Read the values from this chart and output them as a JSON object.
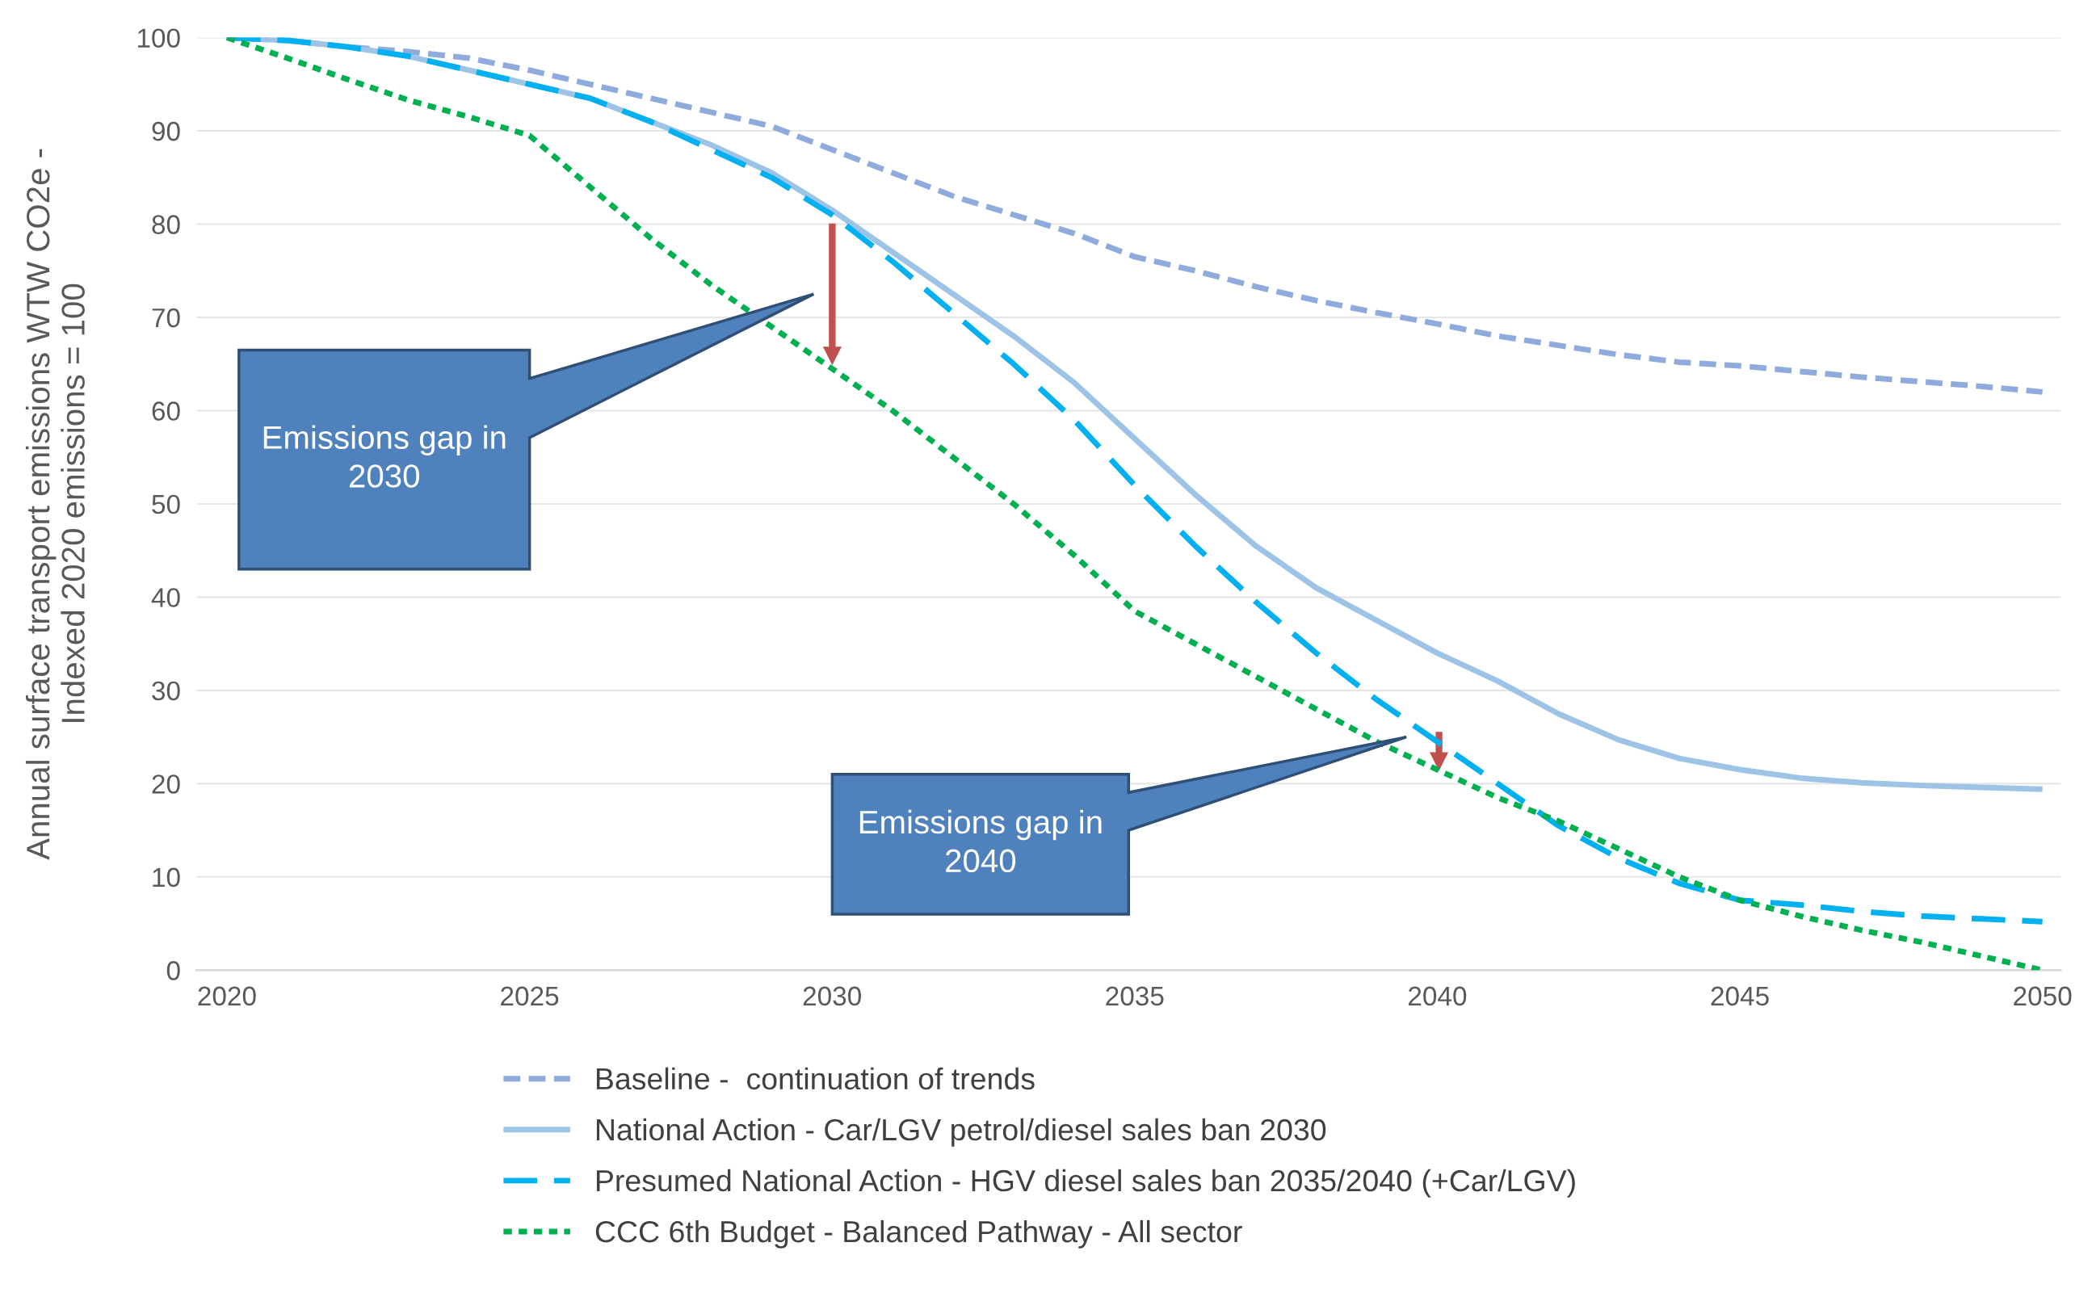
{
  "chart_data": {
    "type": "line",
    "ylabel": "Annual surface transport emissions WTW CO2e -\nIndexed 2020 emissions = 100",
    "x": [
      2020,
      2021,
      2022,
      2023,
      2024,
      2025,
      2026,
      2027,
      2028,
      2029,
      2030,
      2031,
      2032,
      2033,
      2034,
      2035,
      2036,
      2037,
      2038,
      2039,
      2040,
      2041,
      2042,
      2043,
      2044,
      2045,
      2046,
      2047,
      2048,
      2049,
      2050
    ],
    "series": [
      {
        "name": "Baseline -  continuation of trends",
        "color": "#8faadc",
        "line_style": "dashed",
        "values": [
          100,
          99.7,
          99,
          98.5,
          97.8,
          96.5,
          95,
          93.5,
          92,
          90.5,
          88,
          85.5,
          83,
          81,
          79,
          76.5,
          75,
          73.3,
          71.8,
          70.5,
          69.3,
          68,
          67,
          66,
          65.2,
          64.8,
          64.2,
          63.6,
          63.1,
          62.6,
          62
        ]
      },
      {
        "name": "National Action - Car/LGV petrol/diesel sales ban 2030",
        "color": "#9dc3e6",
        "line_style": "solid",
        "values": [
          100,
          99.7,
          99,
          98,
          96.5,
          95,
          93.5,
          91,
          88.5,
          85.5,
          81.5,
          77,
          72.5,
          68,
          63,
          57,
          51,
          45.5,
          41,
          37.5,
          34,
          31,
          27.5,
          24.7,
          22.7,
          21.5,
          20.6,
          20.1,
          19.8,
          19.6,
          19.4
        ]
      },
      {
        "name": "Presumed National Action - HGV diesel sales ban 2035/2040 (+Car/LGV)",
        "color": "#00b0f0",
        "line_style": "longdash",
        "values": [
          100,
          99.7,
          99,
          98,
          96.5,
          95,
          93.5,
          91,
          88,
          85,
          81,
          76,
          70.5,
          65,
          59,
          52,
          45.5,
          39.5,
          34,
          29,
          24.5,
          20,
          15.5,
          12,
          9.3,
          7.5,
          7,
          6.3,
          5.8,
          5.5,
          5.2
        ]
      },
      {
        "name": "CCC 6th Budget - Balanced Pathway - All sector",
        "color": "#00b050",
        "line_style": "dotted",
        "values": [
          100,
          97.8,
          95.5,
          93.3,
          91.5,
          89.5,
          84,
          78.5,
          73.5,
          69,
          64.5,
          60,
          55,
          50,
          44.5,
          38.5,
          35,
          31.5,
          28,
          24.5,
          21.5,
          18.5,
          16,
          13,
          10,
          7.5,
          5.8,
          4.3,
          3,
          1.5,
          0
        ]
      }
    ],
    "xlim": [
      2019.5,
      2050.3
    ],
    "xticks": [
      2020,
      2025,
      2030,
      2035,
      2040,
      2045,
      2050
    ],
    "ylim": [
      0,
      100
    ],
    "yticks": [
      0,
      10,
      20,
      30,
      40,
      50,
      60,
      70,
      80,
      90,
      100
    ],
    "grid": "y",
    "legend": "bottom",
    "marker": "none",
    "annotations": [
      "Emissions gap in\n2030",
      "Emissions gap in\n2040"
    ]
  }
}
